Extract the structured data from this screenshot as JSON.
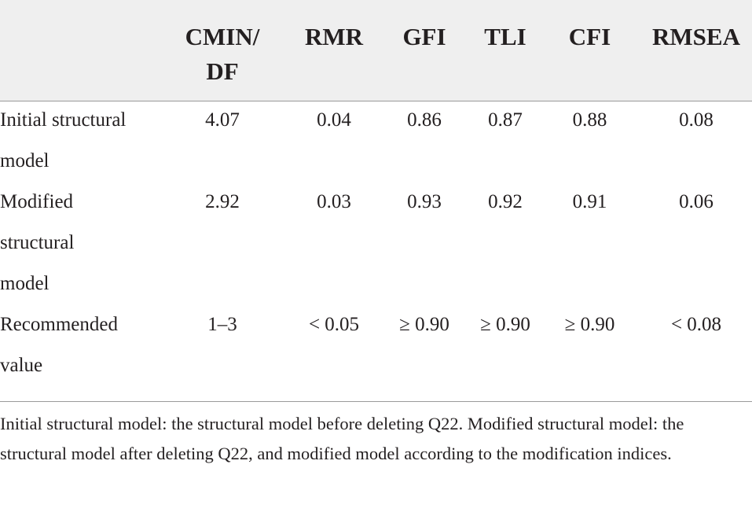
{
  "table": {
    "headers": [
      "CMIN/\nDF",
      "RMR",
      "GFI",
      "TLI",
      "CFI",
      "RMSEA"
    ],
    "header_cmin_line1": "CMIN/",
    "header_cmin_line2": "DF",
    "rows": [
      {
        "label": "Initial structural model",
        "values": [
          "4.07",
          "0.04",
          "0.86",
          "0.87",
          "0.88",
          "0.08"
        ]
      },
      {
        "label": "Modified structural model",
        "values": [
          "2.92",
          "0.03",
          "0.93",
          "0.92",
          "0.91",
          "0.06"
        ]
      },
      {
        "label": "Recommended value",
        "values": [
          "1–3",
          "< 0.05",
          "≥ 0.90",
          "≥ 0.90",
          "≥ 0.90",
          "< 0.08"
        ]
      }
    ]
  },
  "footnote": "Initial structural model: the structural model before deleting Q22. Modified structural model: the structural model after deleting Q22, and modified model according to the modification indices."
}
